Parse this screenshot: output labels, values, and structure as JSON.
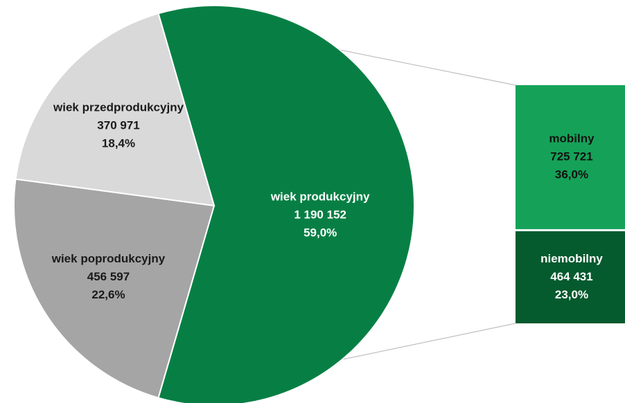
{
  "chart_data": {
    "type": "pie",
    "subtype": "bar-of-pie",
    "title": "",
    "slices": [
      {
        "category": "wiek produkcyjny",
        "value_text": "1 190 152",
        "value": 1190152,
        "percent_text": "59,0%",
        "percent": 59.0,
        "color": "#077F44",
        "label_color": "#ffffff"
      },
      {
        "category": "wiek poprodukcyjny",
        "value_text": "456 597",
        "value": 456597,
        "percent_text": "22,6%",
        "percent": 22.6,
        "color": "#A5A5A5",
        "label_color": "#1a1a1a"
      },
      {
        "category": "wiek przedprodukcyjny",
        "value_text": "370 971",
        "value": 370971,
        "percent_text": "18,4%",
        "percent": 18.4,
        "color": "#D9D9D9",
        "label_color": "#1a1a1a"
      }
    ],
    "breakdown_of": "wiek produkcyjny",
    "breakdown": [
      {
        "category": "mobilny",
        "value_text": "725 721",
        "value": 725721,
        "percent_text": "36,0%",
        "percent": 36.0,
        "color": "#15A258",
        "label_color": "#111111"
      },
      {
        "category": "niemobilny",
        "value_text": "464 431",
        "value": 464431,
        "percent_text": "23,0%",
        "percent": 23.0,
        "color": "#055A2E",
        "label_color": "#ffffff"
      }
    ],
    "connector_color": "#bfbfbf"
  }
}
